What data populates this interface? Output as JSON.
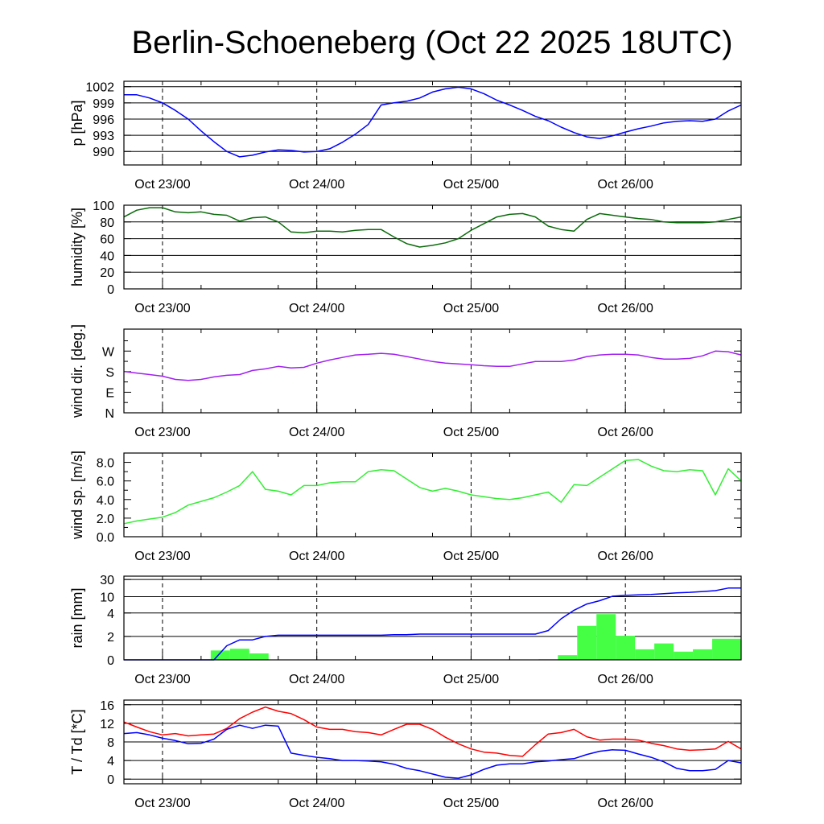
{
  "title": "Berlin-Schoeneberg (Oct 22 2025 18UTC)",
  "chart_data": {
    "type": "line",
    "x_unit": "hours since Oct 22 18UTC",
    "x_range": [
      0,
      96
    ],
    "x_step": 2,
    "x_ticks": [
      {
        "h": 6,
        "label": "Oct 23/00"
      },
      {
        "h": 30,
        "label": "Oct 24/00"
      },
      {
        "h": 54,
        "label": "Oct 25/00"
      },
      {
        "h": 78,
        "label": "Oct 26/00"
      }
    ],
    "panels": [
      {
        "id": "pressure",
        "ylabel": "p [hPa]",
        "ylim": [
          987.5,
          1003
        ],
        "grid": true,
        "ticks": [
          {
            "v": 990,
            "label": "990"
          },
          {
            "v": 993,
            "label": "993"
          },
          {
            "v": 996,
            "label": "996"
          },
          {
            "v": 999,
            "label": "999"
          },
          {
            "v": 1002,
            "label": "1002"
          }
        ],
        "series": [
          {
            "name": "p",
            "color": "#0000ff",
            "values": [
              1000.5,
              1000.5,
              999.9,
              999,
              997.6,
              996,
              993.8,
              991.8,
              990,
              989,
              989.3,
              989.9,
              990.3,
              990.2,
              989.9,
              990,
              990.5,
              991.7,
              993.2,
              995,
              998.6,
              999,
              999.3,
              999.9,
              1001,
              1001.6,
              1001.9,
              1001.6,
              1000.7,
              999.5,
              998.6,
              997.6,
              996.5,
              995.7,
              994.5,
              993.5,
              992.7,
              992.4,
              992.9,
              993.6,
              994.2,
              994.7,
              995.3,
              995.6,
              995.7,
              995.6,
              996,
              997.5,
              998.6
            ]
          }
        ]
      },
      {
        "id": "humidity",
        "ylabel": "humidity [%]",
        "ylim": [
          0,
          100
        ],
        "grid": true,
        "ticks": [
          {
            "v": 0,
            "label": "0"
          },
          {
            "v": 20,
            "label": "20"
          },
          {
            "v": 40,
            "label": "40"
          },
          {
            "v": 60,
            "label": "60"
          },
          {
            "v": 80,
            "label": "80"
          },
          {
            "v": 100,
            "label": "100"
          }
        ],
        "series": [
          {
            "name": "humidity",
            "color": "#0b6b0b",
            "values": [
              86,
              94,
              97,
              97,
              92,
              91,
              92,
              89,
              88,
              81,
              85,
              86,
              80,
              68,
              67,
              69,
              69,
              68,
              70,
              71,
              71,
              62,
              54,
              50,
              52,
              55,
              60,
              70,
              78,
              86,
              89,
              90,
              86,
              75,
              71,
              69,
              83,
              90,
              88,
              86,
              84,
              83,
              80,
              79,
              79,
              79,
              80,
              83,
              86
            ]
          }
        ]
      },
      {
        "id": "wind-direction",
        "ylabel": "wind dir. [deg.]",
        "ylim": [
          0,
          366
        ],
        "grid": false,
        "ticks": [
          {
            "v": 0,
            "label": "N"
          },
          {
            "v": 90,
            "label": "E"
          },
          {
            "v": 180,
            "label": "S"
          },
          {
            "v": 270,
            "label": "W"
          }
        ],
        "minor_ticks": [
          45,
          135,
          225,
          315
        ],
        "series": [
          {
            "name": "wind direction",
            "color": "#a020f0",
            "values": [
              181,
              174,
              167,
              160,
              146,
              142,
              146,
              157,
              164,
              167,
              185,
              192,
              203,
              196,
              199,
              217,
              231,
              242,
              253,
              256,
              260,
              256,
              246,
              235,
              224,
              217,
              214,
              210,
              206,
              203,
              203,
              214,
              224,
              224,
              224,
              231,
              246,
              253,
              256,
              256,
              253,
              242,
              235,
              235,
              238,
              249,
              270,
              267,
              253
            ]
          }
        ]
      },
      {
        "id": "wind-speed",
        "ylabel": "wind sp. [m/s]",
        "ylim": [
          0,
          9
        ],
        "grid": false,
        "ticks": [
          {
            "v": 0,
            "label": "0.0"
          },
          {
            "v": 2,
            "label": "2.0"
          },
          {
            "v": 4,
            "label": "4.0"
          },
          {
            "v": 6,
            "label": "6.0"
          },
          {
            "v": 8,
            "label": "8.0"
          }
        ],
        "minor_ticks": [
          1,
          3,
          5,
          7
        ],
        "series": [
          {
            "name": "wind speed",
            "color": "#33ee33",
            "values": [
              1.4,
              1.7,
              1.9,
              2.1,
              2.6,
              3.4,
              3.8,
              4.2,
              4.8,
              5.5,
              7.0,
              5.1,
              4.9,
              4.5,
              5.5,
              5.5,
              5.8,
              5.9,
              5.9,
              7.0,
              7.2,
              7.1,
              6.2,
              5.3,
              4.9,
              5.2,
              4.9,
              4.5,
              4.3,
              4.1,
              4.0,
              4.2,
              4.5,
              4.8,
              3.7,
              5.6,
              5.5,
              6.4,
              7.3,
              8.2,
              8.3,
              7.6,
              7.1,
              7.0,
              7.2,
              7.1,
              4.5,
              7.3,
              6.0
            ]
          }
        ]
      },
      {
        "id": "rain",
        "ylabel": "rain [mm]",
        "ylim": [
          0,
          30
        ],
        "grid": true,
        "scale": "piecewise",
        "ticks": [
          {
            "v": 0,
            "label": "0"
          },
          {
            "v": 2,
            "label": "2"
          },
          {
            "v": 4,
            "label": "4"
          },
          {
            "v": 10,
            "label": "10"
          },
          {
            "v": 30,
            "label": "30"
          }
        ],
        "bars": {
          "name": "3-hourly rain",
          "color": "#44ff44",
          "width_h": 3,
          "h": [
            15,
            18,
            21,
            66,
            69,
            72,
            75,
            78,
            81,
            84,
            87,
            90,
            93,
            96
          ],
          "values": [
            0.8,
            0.95,
            0.55,
            0.05,
            0.4,
            2.9,
            3.9,
            2.05,
            0.9,
            1.4,
            0.7,
            0.9,
            1.8,
            1.8
          ]
        },
        "series": [
          {
            "name": "accumulated rain",
            "color": "#0000ff",
            "values": [
              0,
              0,
              0,
              0,
              0,
              0,
              0,
              0,
              1.2,
              1.7,
              1.7,
              2.0,
              2.1,
              2.1,
              2.1,
              2.1,
              2.1,
              2.1,
              2.1,
              2.1,
              2.1,
              2.15,
              2.15,
              2.2,
              2.2,
              2.2,
              2.2,
              2.2,
              2.2,
              2.2,
              2.2,
              2.2,
              2.2,
              2.5,
              3.5,
              5.0,
              7.3,
              8.5,
              10.5,
              11.5,
              12,
              12.5,
              13.5,
              14.5,
              15,
              16,
              17,
              20,
              20
            ]
          }
        ]
      },
      {
        "id": "temperature",
        "ylabel": "T / Td [*C]",
        "ylim": [
          -1,
          17
        ],
        "grid": true,
        "ticks": [
          {
            "v": 0,
            "label": "0"
          },
          {
            "v": 4,
            "label": "4"
          },
          {
            "v": 8,
            "label": "8"
          },
          {
            "v": 12,
            "label": "12"
          },
          {
            "v": 16,
            "label": "16"
          }
        ],
        "series": [
          {
            "name": "T",
            "color": "#ff0000",
            "values": [
              12.3,
              11.2,
              10.2,
              9.5,
              9.8,
              9.3,
              9.5,
              9.7,
              10.9,
              13,
              14.4,
              15.5,
              14.6,
              14.1,
              12.8,
              11.2,
              10.7,
              10.7,
              10.2,
              10,
              9.5,
              10.7,
              11.8,
              11.8,
              10.7,
              9,
              7.6,
              6.5,
              5.8,
              5.6,
              5.1,
              4.9,
              7.4,
              9.7,
              10,
              10.7,
              9.1,
              8.4,
              8.6,
              8.6,
              8.4,
              7.7,
              7.2,
              6.5,
              6.2,
              6.3,
              6.5,
              8.1,
              6.5
            ]
          },
          {
            "name": "Td",
            "color": "#0000ff",
            "values": [
              9.8,
              10,
              9.5,
              8.8,
              8.3,
              7.6,
              7.7,
              8.6,
              10.7,
              11.6,
              10.9,
              11.6,
              11.4,
              5.6,
              5.1,
              4.7,
              4.4,
              4,
              4,
              3.9,
              3.7,
              3.2,
              2.3,
              1.8,
              1.1,
              0.4,
              0.2,
              0.9,
              2.1,
              3,
              3.3,
              3.3,
              3.7,
              3.9,
              4.2,
              4.4,
              5.3,
              6,
              6.3,
              6.2,
              5.4,
              4.7,
              3.7,
              2.3,
              1.8,
              1.8,
              2.1,
              4,
              3.5
            ]
          }
        ]
      }
    ]
  }
}
